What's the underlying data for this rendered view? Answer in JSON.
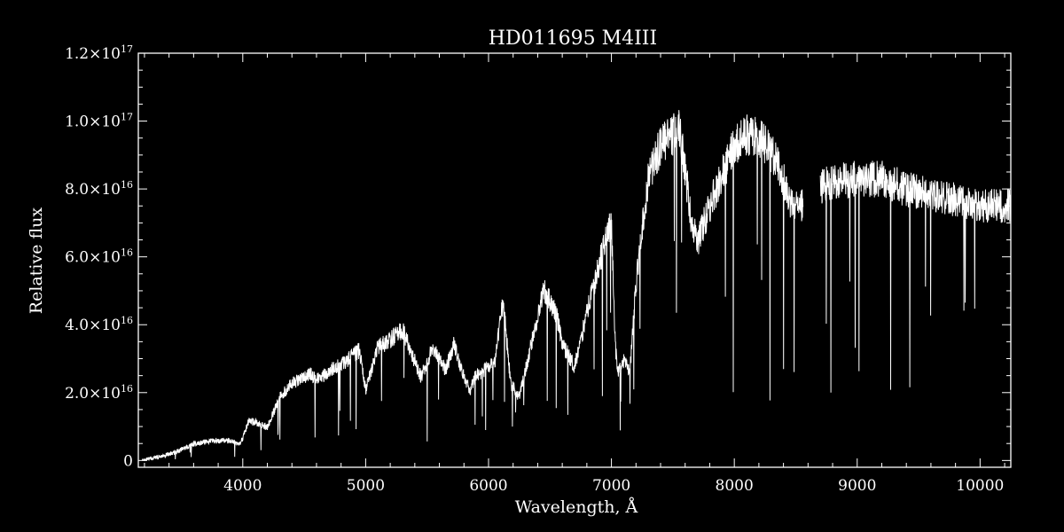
{
  "chart_data": {
    "type": "line",
    "title": "HD011695   M4III",
    "xlabel": "Wavelength, Å",
    "ylabel": "Relative flux",
    "xlim": [
      3150,
      10250
    ],
    "ylim": [
      -2000000000000000.0,
      1.2e+17
    ],
    "grid": false,
    "legend": "none",
    "x_ticks": [
      4000,
      5000,
      6000,
      7000,
      8000,
      9000,
      10000
    ],
    "x_tick_labels": [
      "4000",
      "5000",
      "6000",
      "7000",
      "8000",
      "9000",
      "10000"
    ],
    "y_ticks": [
      {
        "value": 0,
        "mantissa": "0",
        "exp": ""
      },
      {
        "value": 2e+16,
        "mantissa": "2.0×10",
        "exp": "16"
      },
      {
        "value": 4e+16,
        "mantissa": "4.0×10",
        "exp": "16"
      },
      {
        "value": 6e+16,
        "mantissa": "6.0×10",
        "exp": "16"
      },
      {
        "value": 8e+16,
        "mantissa": "8.0×10",
        "exp": "16"
      },
      {
        "value": 1e+17,
        "mantissa": "1.0×10",
        "exp": "17"
      },
      {
        "value": 1.2e+17,
        "mantissa": "1.2×10",
        "exp": "17"
      }
    ],
    "gap": [
      8560,
      8700
    ],
    "series": [
      {
        "x": [
          3150,
          3300,
          3450,
          3600,
          3750,
          3900,
          3980,
          4050,
          4200,
          4300,
          4400,
          4550,
          4600,
          4750,
          4850,
          4950,
          5000,
          5100,
          5200,
          5300,
          5450,
          5550,
          5650,
          5720,
          5780,
          5850,
          5890,
          6000,
          6050,
          6120,
          6180,
          6250,
          6350,
          6450,
          6550,
          6600,
          6700,
          6800,
          6900,
          7000,
          7030,
          7050,
          7100,
          7150,
          7200,
          7300,
          7400,
          7450,
          7500,
          7550,
          7600,
          7650,
          7700,
          7800,
          7900,
          8000,
          8100,
          8200,
          8300,
          8400,
          8450,
          8500,
          8550,
          8700,
          8800,
          9000,
          9200,
          9400,
          9600,
          9800,
          10000,
          10200
        ],
        "y": [
          0.0,
          1000000000000000.0,
          2500000000000000.0,
          5000000000000000.0,
          6000000000000000.0,
          6000000000000000.0,
          5000000000000000.0,
          1.2e+16,
          1e+16,
          1.9e+16,
          2.3e+16,
          2.6e+16,
          2.4e+16,
          2.8e+16,
          3e+16,
          3.3e+16,
          2.1e+16,
          3.4e+16,
          3.6e+16,
          3.9e+16,
          2.5e+16,
          3.4e+16,
          2.7e+16,
          3.5e+16,
          2.7e+16,
          2.1e+16,
          2.5e+16,
          2.8e+16,
          2.9e+16,
          4.8e+16,
          2.3e+16,
          1.9e+16,
          3.5e+16,
          5.1e+16,
          4.4e+16,
          3.5e+16,
          2.8e+16,
          4.4e+16,
          5.9e+16,
          7.1e+16,
          3.6e+16,
          2.6e+16,
          3e+16,
          2.6e+16,
          5.3e+16,
          8.4e+16,
          9.4e+16,
          9.6e+16,
          9.7e+16,
          1e+17,
          8.7e+16,
          7.2e+16,
          6.5e+16,
          7.6e+16,
          8.5e+16,
          9.4e+16,
          9.7e+16,
          9.7e+16,
          9.2e+16,
          8.4e+16,
          7.8e+16,
          7.6e+16,
          7.6e+16,
          8.2e+16,
          8.3e+16,
          8.4e+16,
          8.4e+16,
          8.1e+16,
          7.9e+16,
          7.8e+16,
          7.6e+16,
          7.6e+16
        ]
      }
    ]
  }
}
